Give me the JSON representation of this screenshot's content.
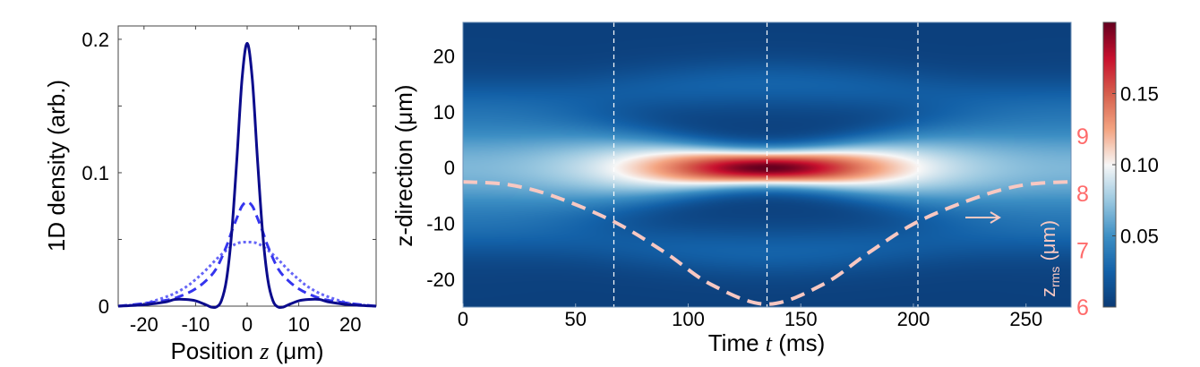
{
  "chart_data": [
    {
      "type": "line",
      "xlabel_prefix": "Position ",
      "xlabel_var": "z",
      "xlabel_unit": " (μm)",
      "ylabel": "1D density (arb.)",
      "xlim": [
        -25,
        25
      ],
      "ylim": [
        0,
        0.21
      ],
      "xticks": [
        -20,
        -10,
        0,
        10,
        20
      ],
      "yticks": [
        0,
        0.1,
        0.2
      ],
      "yticklabels": [
        "0",
        "0.1",
        "0.2"
      ],
      "series": [
        {
          "style": "solid",
          "color": "#0b0b8c",
          "x": [
            -25,
            -20,
            -16,
            -14,
            -12,
            -10,
            -8,
            -7,
            -6,
            -5,
            -4,
            -3,
            -2,
            -1,
            0,
            1,
            2,
            3,
            4,
            5,
            6,
            7,
            8,
            10,
            12,
            14,
            16,
            20,
            25
          ],
          "y": [
            0,
            0.001,
            0.003,
            0.005,
            0.005,
            0.004,
            0.001,
            -0.001,
            -0.001,
            0.004,
            0.02,
            0.055,
            0.11,
            0.17,
            0.197,
            0.17,
            0.11,
            0.055,
            0.02,
            0.004,
            -0.001,
            -0.001,
            0.001,
            0.004,
            0.005,
            0.005,
            0.003,
            0.001,
            0
          ]
        },
        {
          "style": "dashed",
          "color": "#3535ee",
          "x": [
            -25,
            -20,
            -15,
            -12,
            -10,
            -8,
            -6,
            -4,
            -3,
            -2,
            -1,
            0,
            1,
            2,
            3,
            4,
            6,
            8,
            10,
            12,
            15,
            20,
            25
          ],
          "y": [
            0,
            0.002,
            0.005,
            0.009,
            0.013,
            0.019,
            0.028,
            0.045,
            0.056,
            0.066,
            0.075,
            0.078,
            0.075,
            0.066,
            0.056,
            0.045,
            0.028,
            0.019,
            0.013,
            0.009,
            0.005,
            0.002,
            0
          ]
        },
        {
          "style": "dotted",
          "color": "#6666f7",
          "x": [
            -25,
            -20,
            -15,
            -12,
            -10,
            -8,
            -6,
            -4,
            -2,
            0,
            2,
            4,
            6,
            8,
            10,
            12,
            15,
            20,
            25
          ],
          "y": [
            0,
            0.002,
            0.008,
            0.014,
            0.02,
            0.027,
            0.035,
            0.042,
            0.047,
            0.048,
            0.047,
            0.042,
            0.035,
            0.027,
            0.02,
            0.014,
            0.008,
            0.002,
            0
          ]
        }
      ]
    },
    {
      "type": "heatmap",
      "xlabel_prefix": "Time ",
      "xlabel_var": "t",
      "xlabel_unit": " (ms)",
      "ylabel": "z-direction (μm)",
      "xlim": [
        0,
        270
      ],
      "ylim": [
        -25,
        26
      ],
      "xticks": [
        0,
        50,
        100,
        150,
        200,
        250
      ],
      "yticks": [
        -20,
        -10,
        0,
        10,
        20
      ],
      "colorbar": {
        "range": [
          0,
          0.2
        ],
        "ticks": [
          0.05,
          0.1,
          0.15
        ],
        "ticklabels": [
          "0.05",
          "0.10",
          "0.15"
        ],
        "colormap": [
          "#0b3a75",
          "#1361a8",
          "#3d8fc4",
          "#9ac8e0",
          "#f7f7f7",
          "#f4a582",
          "#d6604d",
          "#c8102e",
          "#67001f"
        ]
      },
      "peak_density": 0.197,
      "peak_time": 135,
      "vertical_markers_t": [
        67,
        135,
        202
      ],
      "marker_color": "#ffffff",
      "zrms_axis": {
        "label_main": "z",
        "label_sub": "rms",
        "label_unit": " (μm)",
        "ylim": [
          6,
          11
        ],
        "ticks": [
          6,
          7,
          8,
          9
        ],
        "color": "#ff6b6b"
      },
      "zrms_series": {
        "style": "dashed",
        "color": "#f8c8c2",
        "t": [
          0,
          20,
          40,
          67,
          90,
          110,
          135,
          160,
          180,
          202,
          230,
          250,
          270
        ],
        "zrms": [
          8.2,
          8.15,
          7.95,
          7.5,
          6.95,
          6.4,
          6.05,
          6.4,
          6.95,
          7.5,
          7.95,
          8.15,
          8.2
        ]
      },
      "arrow_direction": "right"
    }
  ]
}
